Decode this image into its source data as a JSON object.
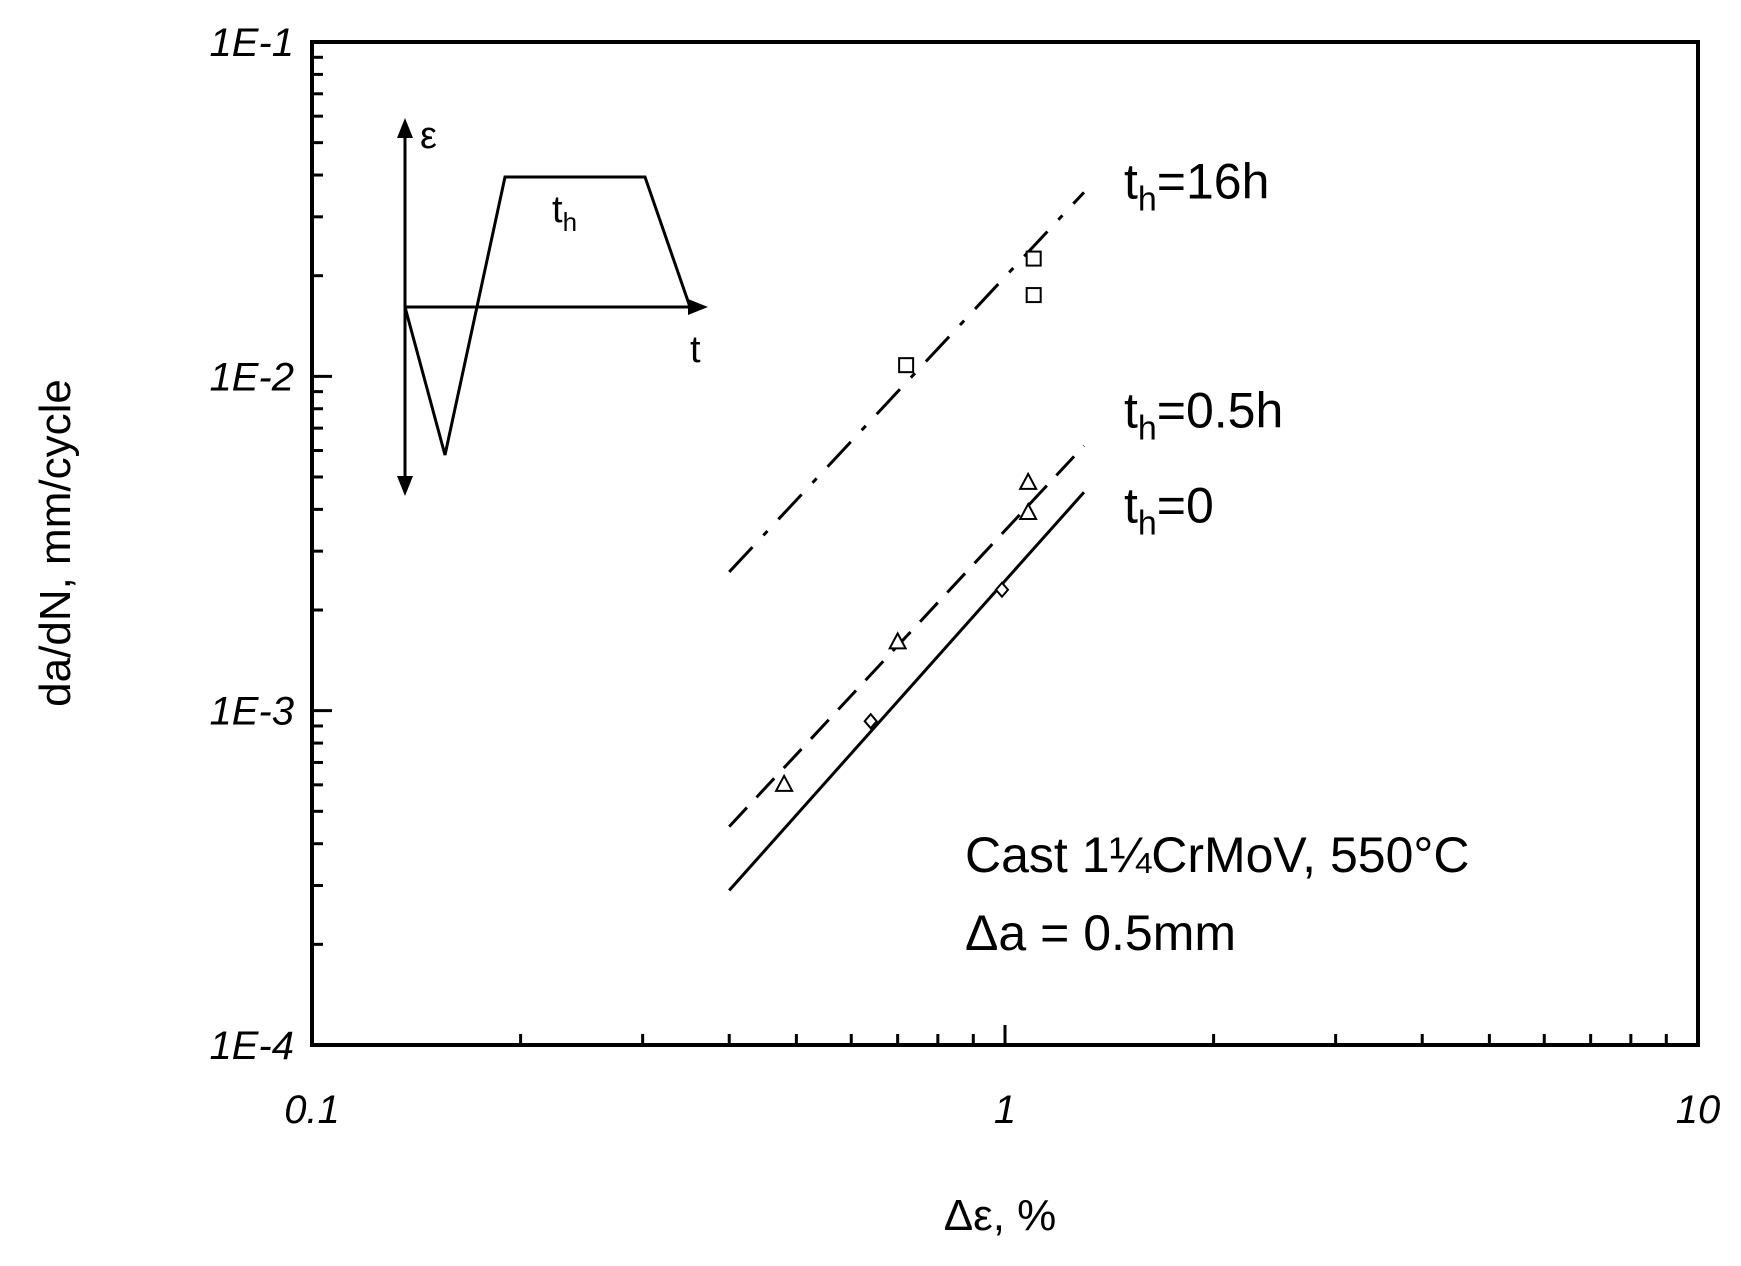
{
  "chart_data": {
    "type": "scatter",
    "xlabel": "Δε, %",
    "ylabel": "da/dN, mm/cycle",
    "x_scale": "log",
    "y_scale": "log",
    "xlim": [
      0.1,
      10
    ],
    "ylim": [
      0.0001,
      0.1
    ],
    "x_ticks": [
      {
        "value": 0.1,
        "label": "0.1"
      },
      {
        "value": 1,
        "label": "1"
      },
      {
        "value": 10,
        "label": "10"
      }
    ],
    "y_ticks": [
      {
        "value": 0.0001,
        "label": "1E-4"
      },
      {
        "value": 0.001,
        "label": "1E-3"
      },
      {
        "value": 0.01,
        "label": "1E-2"
      },
      {
        "value": 0.1,
        "label": "1E-1"
      }
    ],
    "grid": false,
    "series": [
      {
        "label_main": "t",
        "label_sub": "h",
        "label_rest": "=16h",
        "marker": "square",
        "line_style": "dash-dot",
        "points": [
          {
            "x": 0.72,
            "y": 0.0108
          },
          {
            "x": 1.1,
            "y": 0.0225
          },
          {
            "x": 1.1,
            "y": 0.0175
          }
        ],
        "fit_line": {
          "x": [
            0.4,
            1.3
          ],
          "y": [
            0.0026,
            0.0355
          ]
        }
      },
      {
        "label_main": "t",
        "label_sub": "h",
        "label_rest": "=0.5h",
        "marker": "triangle",
        "line_style": "dashed",
        "points": [
          {
            "x": 0.48,
            "y": 0.0006
          },
          {
            "x": 0.7,
            "y": 0.0016
          },
          {
            "x": 1.08,
            "y": 0.0048
          },
          {
            "x": 1.08,
            "y": 0.0039
          }
        ],
        "fit_line": {
          "x": [
            0.4,
            1.3
          ],
          "y": [
            0.00045,
            0.0062
          ]
        }
      },
      {
        "label_main": "t",
        "label_sub": "h",
        "label_rest": "=0",
        "marker": "diamond",
        "line_style": "solid",
        "points": [
          {
            "x": 0.64,
            "y": 0.00093
          },
          {
            "x": 0.99,
            "y": 0.0023
          }
        ],
        "fit_line": {
          "x": [
            0.4,
            1.3
          ],
          "y": [
            0.00029,
            0.0045
          ]
        }
      }
    ],
    "annotations": {
      "line1": "Cast 1¼CrMoV, 550°C",
      "line2": "Δa = 0.5mm"
    },
    "inset": {
      "y_axis_label": "ε",
      "x_axis_label": "t",
      "hold_label_main": "t",
      "hold_label_sub": "h"
    }
  }
}
